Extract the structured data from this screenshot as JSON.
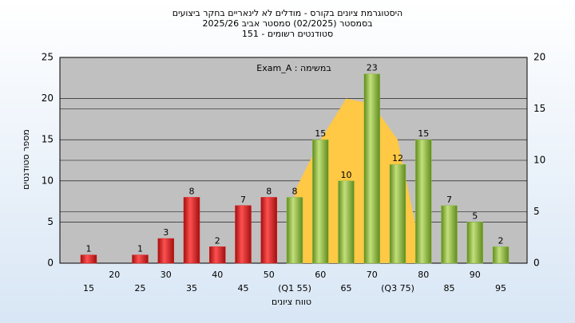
{
  "chart_data": {
    "type": "bar",
    "title": "היסטוגרמת ציונים בקורס - מודלים לא לינאריים בחקר ביצועים",
    "subtitle": "בסמסטר  (02/2025)  סמסטר אביב 2025/26",
    "subtitle2": "סטודנטים רשומים - 151",
    "annotation": "Exam_A : במשימה",
    "x_label": "טווח ציונים",
    "y_label": "מספר סטודנטים",
    "categories": [
      "15",
      "20",
      "25",
      "30",
      "35",
      "40",
      "45",
      "50",
      "(Q1 55)",
      "60",
      "65",
      "70",
      "(Q3 75)",
      "80",
      "85",
      "90",
      "95"
    ],
    "series": [
      {
        "color": "#e02020",
        "values": [
          1,
          null,
          1,
          3,
          8,
          2,
          7,
          8,
          null,
          null,
          null,
          null,
          null,
          null,
          null,
          null,
          null
        ]
      },
      {
        "color": "#8fc040",
        "values": [
          null,
          null,
          null,
          null,
          null,
          null,
          null,
          null,
          8,
          15,
          10,
          23,
          12,
          15,
          7,
          5,
          2
        ]
      },
      {
        "color": "#ffc845",
        "axis": "y2",
        "style": "area",
        "values": [
          null,
          null,
          null,
          null,
          null,
          null,
          null,
          null,
          7,
          12,
          16,
          15.5,
          12,
          0,
          null,
          null,
          null
        ]
      }
    ],
    "ylim": [
      0,
      25
    ],
    "yticks": [
      0,
      5,
      10,
      15,
      20,
      25
    ],
    "y2lim": [
      0,
      20
    ],
    "y2ticks": [
      0,
      5,
      10,
      15,
      20
    ],
    "grid": true
  }
}
